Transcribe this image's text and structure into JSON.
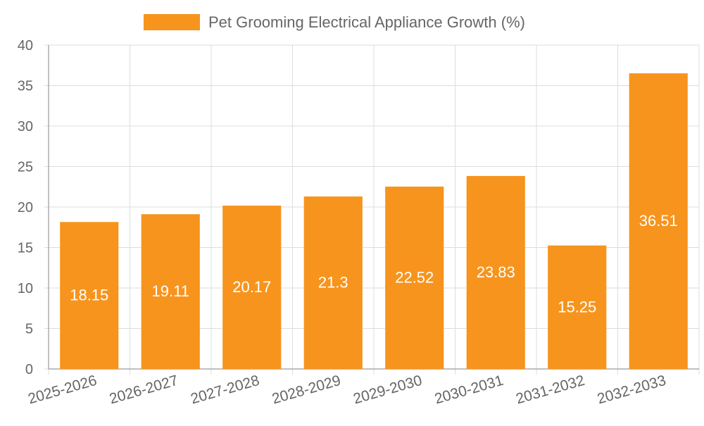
{
  "chart_data": {
    "type": "bar",
    "title": "",
    "legend": {
      "position": "top",
      "entries": [
        "Pet Grooming Electrical Appliance Growth (%)"
      ]
    },
    "categories": [
      "2025-2026",
      "2026-2027",
      "2027-2028",
      "2028-2029",
      "2029-2030",
      "2030-2031",
      "2031-2032",
      "2032-2033"
    ],
    "series": [
      {
        "name": "Pet Grooming Electrical Appliance Growth (%)",
        "values": [
          18.15,
          19.11,
          20.17,
          21.3,
          22.52,
          23.83,
          15.25,
          36.51
        ],
        "color": "#f7941d"
      }
    ],
    "data_labels": [
      "18.15",
      "19.11",
      "20.17",
      "21.3",
      "22.52",
      "23.83",
      "15.25",
      "36.51"
    ],
    "ylim": [
      0,
      40
    ],
    "yticks": [
      0,
      5,
      10,
      15,
      20,
      25,
      30,
      35,
      40
    ],
    "xlabel": "",
    "ylabel": "",
    "grid": true,
    "colors": {
      "bar": "#f7941d",
      "data_label": "#ffffff",
      "grid": "#dddddd",
      "axis": "#999999",
      "tick_label": "#666666"
    }
  }
}
